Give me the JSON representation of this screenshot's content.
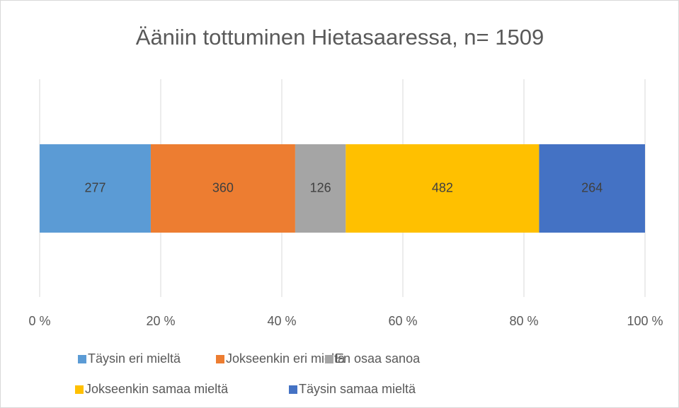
{
  "chart_data": {
    "type": "bar",
    "orientation": "horizontal",
    "stack": "percent",
    "title": "Ääniin tottuminen Hietasaaressa, n= 1509",
    "series": [
      {
        "name": "Täysin eri mieltä",
        "color": "#5b9bd5",
        "values": [
          277
        ]
      },
      {
        "name": "Jokseenkin eri mieltä",
        "color": "#ed7d31",
        "values": [
          360
        ]
      },
      {
        "name": "En osaa sanoa",
        "color": "#a5a5a5",
        "values": [
          126
        ]
      },
      {
        "name": "Jokseenkin samaa mieltä",
        "color": "#ffc000",
        "values": [
          482
        ]
      },
      {
        "name": "Täysin samaa mieltä",
        "color": "#4472c4",
        "values": [
          264
        ]
      }
    ],
    "xlim": [
      0,
      100
    ],
    "xticks": [
      {
        "value": 0,
        "label": "0 %"
      },
      {
        "value": 20,
        "label": "20 %"
      },
      {
        "value": 40,
        "label": "40 %"
      },
      {
        "value": 60,
        "label": "60 %"
      },
      {
        "value": 80,
        "label": "80 %"
      },
      {
        "value": 100,
        "label": "100 %"
      }
    ],
    "grid": true,
    "legend": "bottom"
  }
}
